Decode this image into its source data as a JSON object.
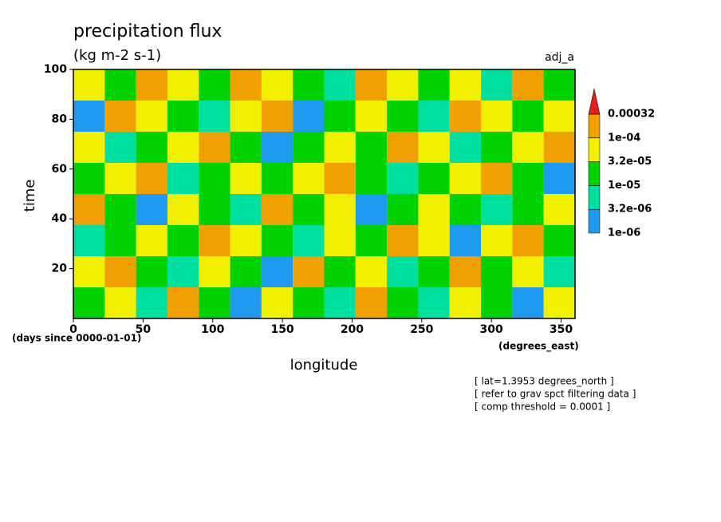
{
  "chart_data": {
    "type": "heatmap",
    "title": "precipitation flux",
    "subtitle": "(kg m-2 s-1)",
    "tag": "adj_a",
    "x_label": "longitude",
    "y_label": "time",
    "x_units": "(degrees_east)",
    "y_units": "(days since 0000-01-01)",
    "notes": [
      "[ lat=1.3953 degrees_north ]",
      "[ refer to grav spct filtering data ]",
      "[ comp threshold = 0.0001 ]"
    ],
    "xlim": [
      0,
      360
    ],
    "xticks": [
      0,
      50,
      100,
      150,
      200,
      250,
      300,
      350
    ],
    "ylim": [
      0,
      100
    ],
    "yticks": [
      20,
      40,
      60,
      80,
      100
    ],
    "x": [
      11.25,
      33.75,
      56.25,
      78.75,
      101.25,
      123.75,
      146.25,
      168.75,
      191.25,
      213.75,
      236.25,
      258.75,
      281.25,
      303.75,
      326.25,
      348.75
    ],
    "y": [
      6.25,
      18.75,
      31.25,
      43.75,
      56.25,
      68.75,
      81.25,
      93.75
    ],
    "z": [
      [
        2e-05,
        5e-05,
        5e-06,
        0.0002,
        2e-05,
        2e-06,
        5e-05,
        2e-05,
        5e-06,
        0.0002,
        2e-05,
        5e-06,
        5e-05,
        2e-05,
        2e-06,
        5e-05
      ],
      [
        5e-05,
        0.0002,
        2e-05,
        5e-06,
        5e-05,
        2e-05,
        2e-06,
        0.0002,
        2e-05,
        5e-05,
        5e-06,
        2e-05,
        0.0002,
        2e-05,
        5e-05,
        5e-06
      ],
      [
        5e-06,
        2e-05,
        5e-05,
        2e-05,
        0.0002,
        5e-05,
        2e-05,
        5e-06,
        5e-05,
        2e-05,
        0.0002,
        5e-05,
        2e-06,
        5e-05,
        0.0002,
        2e-05
      ],
      [
        0.0002,
        2e-05,
        2e-06,
        5e-05,
        2e-05,
        5e-06,
        0.0002,
        2e-05,
        5e-05,
        2e-06,
        2e-05,
        5e-05,
        2e-05,
        5e-06,
        2e-05,
        5e-05
      ],
      [
        2e-05,
        5e-05,
        0.0002,
        5e-06,
        2e-05,
        5e-05,
        2e-05,
        5e-05,
        0.0002,
        2e-05,
        5e-06,
        2e-05,
        5e-05,
        0.0002,
        2e-05,
        2e-06
      ],
      [
        5e-05,
        5e-06,
        2e-05,
        5e-05,
        0.0002,
        2e-05,
        2e-06,
        2e-05,
        5e-05,
        2e-05,
        0.0002,
        5e-05,
        5e-06,
        2e-05,
        5e-05,
        0.0002
      ],
      [
        2e-06,
        0.0002,
        5e-05,
        2e-05,
        5e-06,
        5e-05,
        0.0002,
        2e-06,
        2e-05,
        5e-05,
        2e-05,
        5e-06,
        0.0002,
        5e-05,
        2e-05,
        5e-05
      ],
      [
        5e-05,
        2e-05,
        0.0002,
        5e-05,
        2e-05,
        0.0002,
        5e-05,
        2e-05,
        5e-06,
        0.0002,
        5e-05,
        2e-05,
        5e-05,
        5e-06,
        0.0002,
        2e-05
      ]
    ],
    "levels": [
      {
        "value": 1e-06,
        "label": "1e-06"
      },
      {
        "value": 3.2e-06,
        "label": "3.2e-06"
      },
      {
        "value": 1e-05,
        "label": "1e-05"
      },
      {
        "value": 3.2e-05,
        "label": "3.2e-05"
      },
      {
        "value": 0.0001,
        "label": "1e-04"
      },
      0.00032
    ],
    "colors": [
      "#1e9bf0",
      "#00e0a0",
      "#00d200",
      "#f0f000",
      "#f0a000",
      "#e61e1e"
    ]
  }
}
